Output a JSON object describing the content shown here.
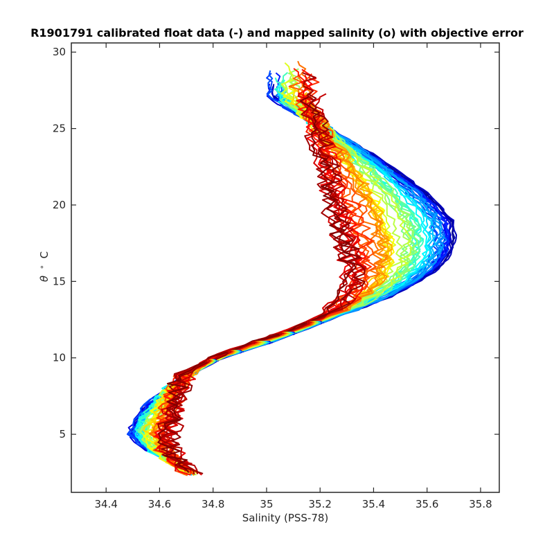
{
  "chart_data": {
    "type": "line",
    "title": "R1901791 calibrated float data (-) and mapped salinity (o) with objective error",
    "xlabel": "Salinity (PSS-78)",
    "ylabel_symbol": "θ",
    "ylabel_unit": "C",
    "xlim": [
      34.27,
      35.87
    ],
    "ylim": [
      1.2,
      30.6
    ],
    "xticks": [
      34.4,
      34.6,
      34.8,
      35.0,
      35.2,
      35.4,
      35.6,
      35.8
    ],
    "xtick_labels": [
      "34.4",
      "34.6",
      "34.8",
      "35",
      "35.2",
      "35.4",
      "35.6",
      "35.8"
    ],
    "yticks": [
      5,
      10,
      15,
      20,
      25,
      30
    ],
    "ytick_labels": [
      "5",
      "10",
      "15",
      "20",
      "25",
      "30"
    ],
    "grid": false,
    "colormap": [
      "#00008f",
      "#0000ff",
      "#007fff",
      "#00ffff",
      "#7fff7f",
      "#ffff00",
      "#ff7f00",
      "#ff0000",
      "#7f0000"
    ],
    "n_profiles": 60,
    "representative_profile": {
      "theta": [
        2.4,
        3.0,
        4.0,
        5.0,
        6.0,
        7.0,
        8.0,
        9.0,
        10.0,
        11.0,
        12.0,
        13.0,
        14.0,
        15.0,
        16.0,
        17.0,
        18.0,
        19.0,
        20.0,
        21.0,
        22.0,
        23.0,
        24.0,
        25.0,
        26.0,
        27.0
      ],
      "salinity_early": [
        34.72,
        34.66,
        34.55,
        34.49,
        34.51,
        34.56,
        34.63,
        34.72,
        34.83,
        35.01,
        35.16,
        35.3,
        35.45,
        35.56,
        35.64,
        35.68,
        35.69,
        35.68,
        35.63,
        35.57,
        35.49,
        35.41,
        35.32,
        35.22,
        35.12,
        35.02
      ],
      "salinity_late": [
        34.72,
        34.68,
        34.64,
        34.63,
        34.65,
        34.66,
        34.67,
        34.7,
        34.8,
        34.95,
        35.12,
        35.24,
        35.3,
        35.32,
        35.32,
        35.3,
        35.28,
        35.26,
        35.25,
        35.24,
        35.23,
        35.22,
        35.2,
        35.19,
        35.18,
        35.17
      ]
    }
  }
}
